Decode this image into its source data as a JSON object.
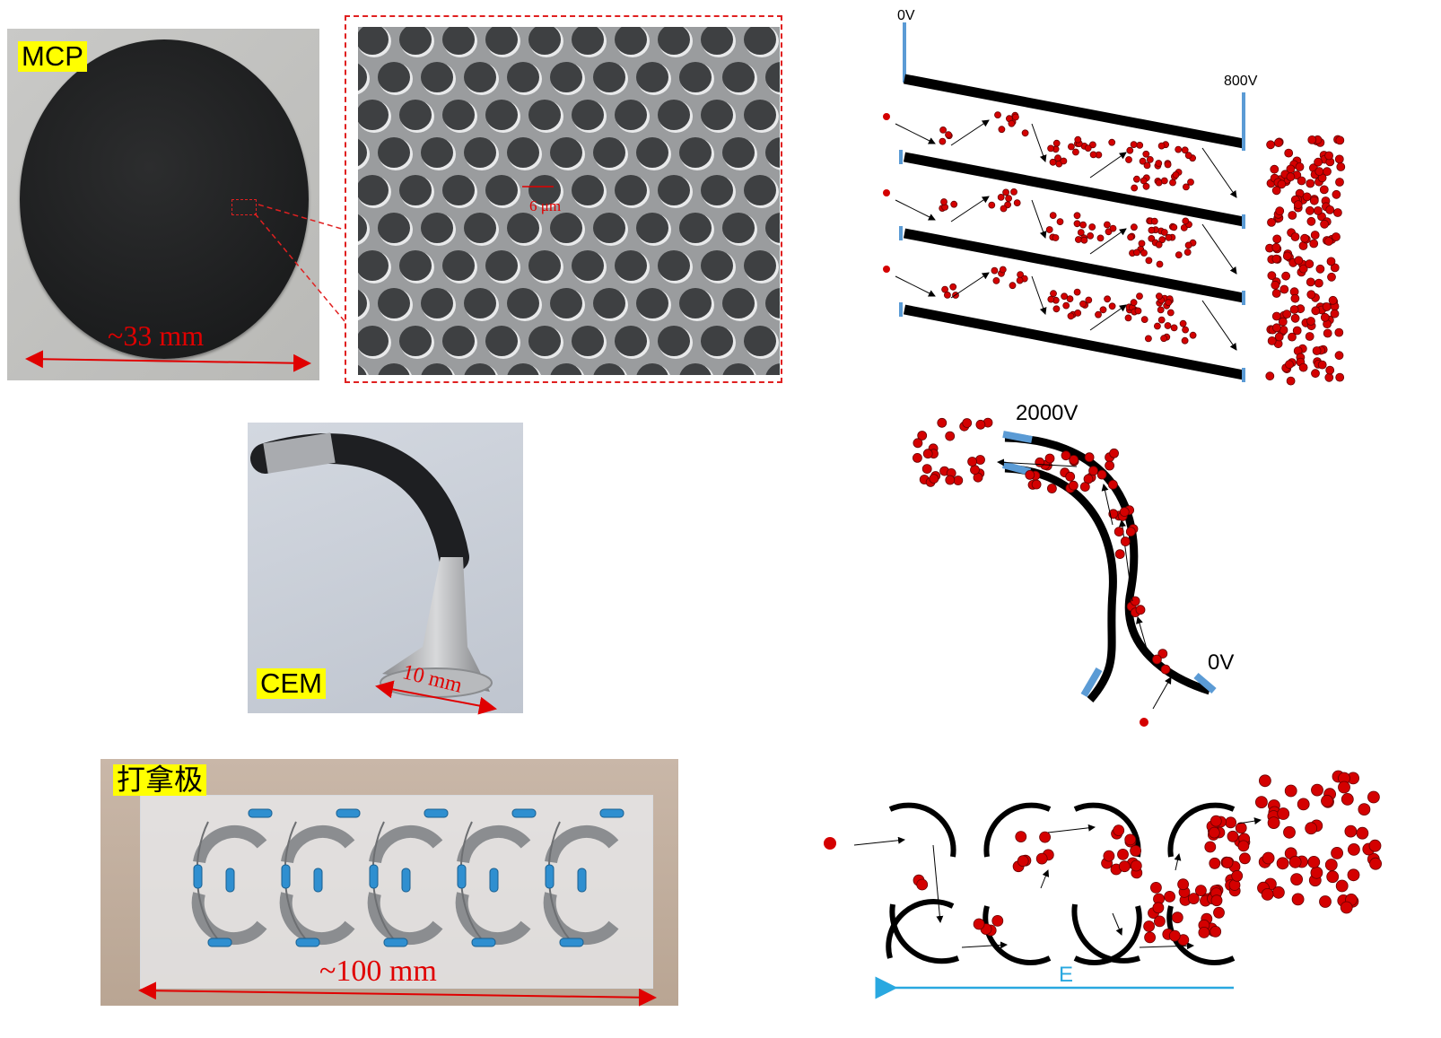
{
  "mcp": {
    "tag": "MCP",
    "dimension": "~33 mm",
    "pore_size": "6 μm"
  },
  "cem": {
    "tag": "CEM",
    "dimension": "10 mm"
  },
  "dynode": {
    "tag": "打拿极",
    "dimension": "~100 mm"
  },
  "mcp_diagram": {
    "voltage_start": "0V",
    "voltage_end": "800V"
  },
  "cem_diagram": {
    "voltage_high": "2000V",
    "voltage_low": "0V"
  },
  "dynode_diagram": {
    "field_label": "E"
  },
  "colors": {
    "label_bg": "#ffff00",
    "dimension_red": "#e00000",
    "electron_red": "#d40000",
    "electrode_blue": "#5b9bd5",
    "field_cyan": "#29a8e0"
  }
}
